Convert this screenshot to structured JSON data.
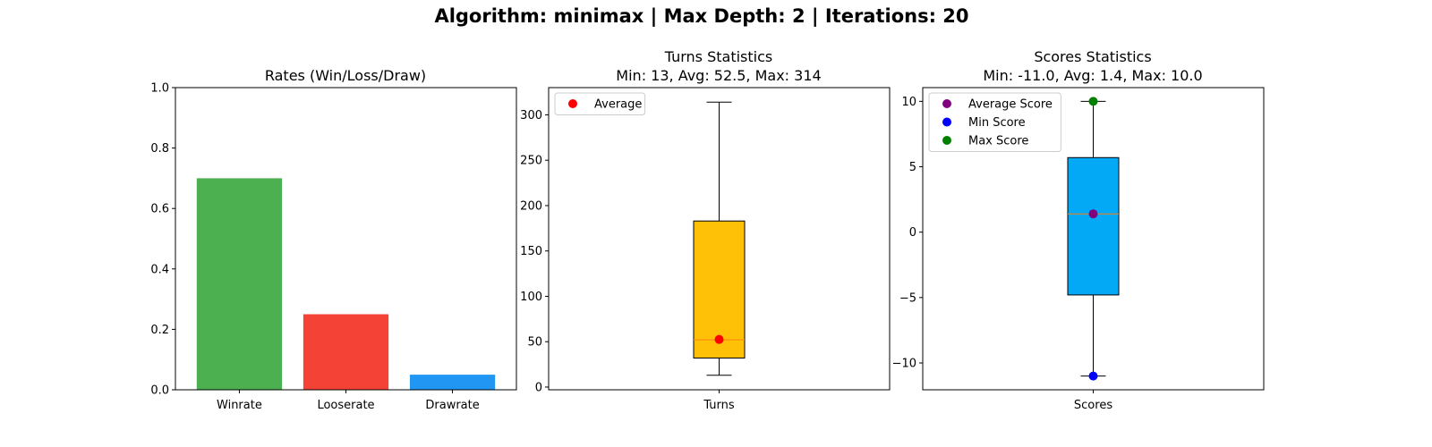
{
  "suptitle": "Algorithm: minimax | Max Depth: 2 | Iterations: 20",
  "chart_data": [
    {
      "type": "bar",
      "title": "Rates (Win/Loss/Draw)",
      "categories": [
        "Winrate",
        "Looserate",
        "Drawrate"
      ],
      "values": [
        0.7,
        0.25,
        0.05
      ],
      "colors": [
        "#4caf50",
        "#f44336",
        "#2196f3"
      ],
      "ylim": [
        0,
        1.0
      ],
      "yticks": [
        0.0,
        0.2,
        0.4,
        0.6,
        0.8,
        1.0
      ],
      "ytick_labels": [
        "0.0",
        "0.2",
        "0.4",
        "0.6",
        "0.8",
        "1.0"
      ]
    },
    {
      "type": "box",
      "title": "Turns Statistics",
      "subtitle": "Min: 13, Avg: 52.5, Max: 314",
      "category": "Turns",
      "box": {
        "whisker_low": 13,
        "q1": 32,
        "median": 52,
        "q3": 183,
        "whisker_high": 314
      },
      "box_color": "#ffc107",
      "median_color": "#ff7f0e",
      "points": [
        {
          "label": "Average",
          "value": 52.5,
          "color": "#ff0000"
        }
      ],
      "legend_position": "upper-left",
      "ylim": [
        -3,
        330
      ],
      "yticks": [
        0,
        50,
        100,
        150,
        200,
        250,
        300
      ],
      "ytick_labels": [
        "0",
        "50",
        "100",
        "150",
        "200",
        "250",
        "300"
      ]
    },
    {
      "type": "box",
      "title": "Scores Statistics",
      "subtitle": "Min: -11.0, Avg: 1.4, Max: 10.0",
      "category": "Scores",
      "box": {
        "whisker_low": -11.0,
        "q1": -4.8,
        "median": 1.4,
        "q3": 5.7,
        "whisker_high": 10.0
      },
      "box_color": "#03a9f4",
      "median_color": "#ff7f0e",
      "points": [
        {
          "label": "Average Score",
          "value": 1.4,
          "color": "#800080"
        },
        {
          "label": "Min Score",
          "value": -11.0,
          "color": "#0000ff"
        },
        {
          "label": "Max Score",
          "value": 10.0,
          "color": "#008000"
        }
      ],
      "legend_position": "upper-left",
      "ylim": [
        -12.05,
        11.05
      ],
      "yticks": [
        10,
        5,
        0,
        -5,
        -10
      ],
      "ytick_labels": [
        "10",
        "5",
        "0",
        "−5",
        "−10"
      ]
    }
  ]
}
